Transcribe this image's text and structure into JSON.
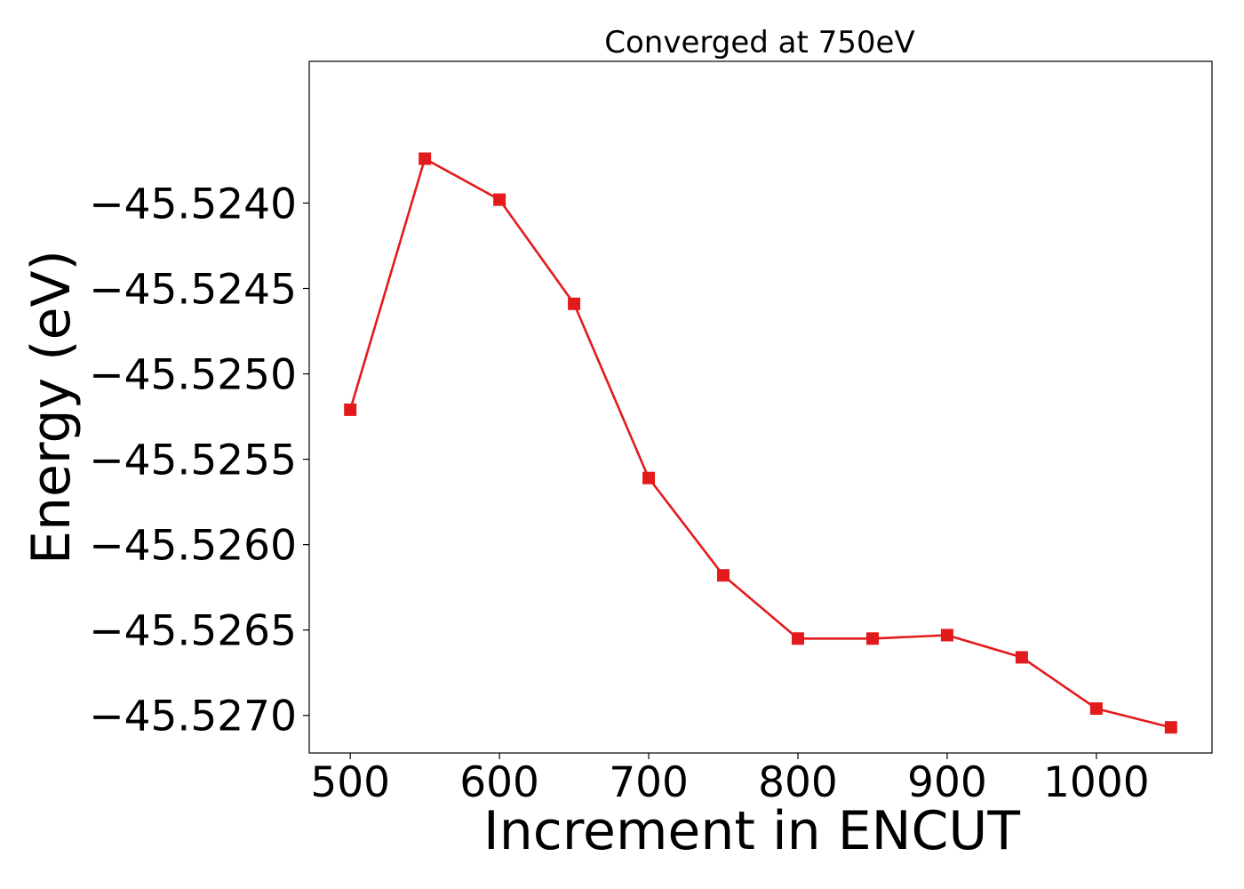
{
  "chart_data": {
    "type": "line",
    "title": "Converged at 750eV",
    "xlabel": "Increment in ENCUT",
    "ylabel": "Energy (eV)",
    "xlim": [
      472.5,
      1077.5
    ],
    "ylim": [
      -45.52722,
      -45.52317
    ],
    "x_ticks": [
      500,
      600,
      700,
      800,
      900,
      1000
    ],
    "x_tick_labels": [
      "500",
      "600",
      "700",
      "800",
      "900",
      "1000"
    ],
    "y_ticks": [
      -45.524,
      -45.5245,
      -45.525,
      -45.5255,
      -45.526,
      -45.5265,
      -45.527
    ],
    "y_tick_labels": [
      "−45.5240",
      "−45.5245",
      "−45.5250",
      "−45.5255",
      "−45.5260",
      "−45.5265",
      "−45.5270"
    ],
    "grid": false,
    "marker": "square",
    "line_color": "#e31a1c",
    "series": [
      {
        "x": [
          500,
          550,
          600,
          650,
          700,
          750,
          800,
          850,
          900,
          950,
          1000,
          1050
        ],
        "values": [
          -45.52521,
          -45.52374,
          -45.52398,
          -45.52459,
          -45.52561,
          -45.52618,
          -45.52655,
          -45.52655,
          -45.52653,
          -45.52666,
          -45.52696,
          -45.52707
        ]
      }
    ]
  }
}
